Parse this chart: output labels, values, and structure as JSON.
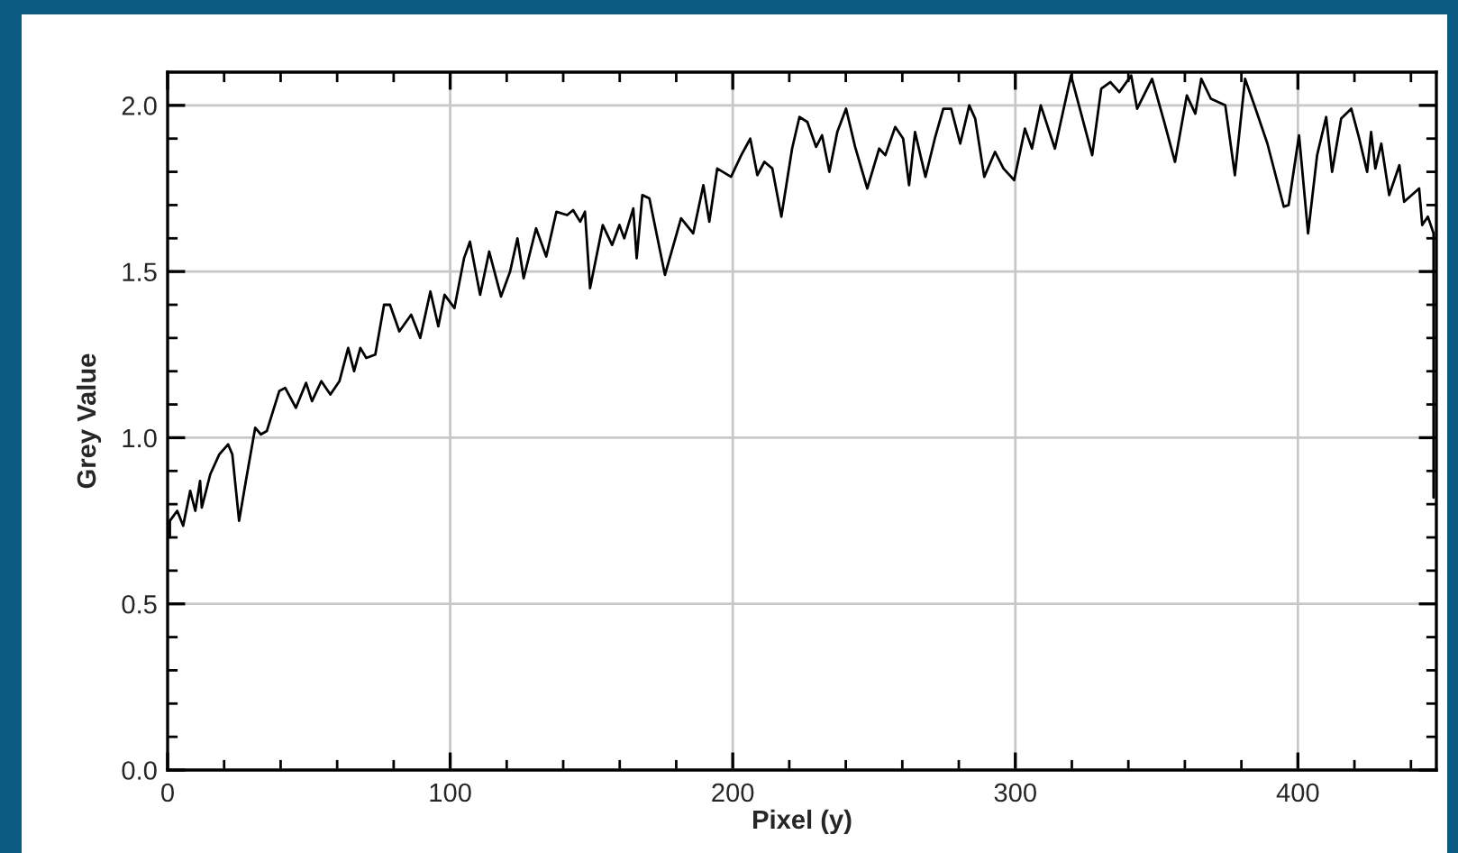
{
  "chart_data": {
    "type": "line",
    "xlabel": "Pixel (y)",
    "ylabel": "Grey Value",
    "xlim": [
      0,
      449
    ],
    "ylim": [
      0,
      2.1
    ],
    "xticks": [
      0,
      {
        "value": 20,
        "label": null
      },
      {
        "value": 40,
        "label": null
      },
      {
        "value": 60,
        "label": null
      },
      {
        "value": 80,
        "label": null
      },
      100,
      {
        "value": 120,
        "label": null
      },
      {
        "value": 140,
        "label": null
      },
      {
        "value": 160,
        "label": null
      },
      {
        "value": 180,
        "label": null
      },
      200,
      {
        "value": 220,
        "label": null
      },
      {
        "value": 240,
        "label": null
      },
      {
        "value": 260,
        "label": null
      },
      {
        "value": 280,
        "label": null
      },
      300,
      {
        "value": 320,
        "label": null
      },
      {
        "value": 340,
        "label": null
      },
      {
        "value": 360,
        "label": null
      },
      {
        "value": 380,
        "label": null
      },
      400,
      {
        "value": 420,
        "label": null
      },
      {
        "value": 440,
        "label": null
      }
    ],
    "yticks": [
      {
        "value": 0,
        "label": "0.0"
      },
      {
        "value": 0.1,
        "label": null
      },
      {
        "value": 0.2,
        "label": null
      },
      {
        "value": 0.3,
        "label": null
      },
      {
        "value": 0.4,
        "label": null
      },
      0.5,
      {
        "value": 0.6,
        "label": null
      },
      {
        "value": 0.7,
        "label": null
      },
      {
        "value": 0.8,
        "label": null
      },
      {
        "value": 0.9,
        "label": null
      },
      {
        "value": 1,
        "label": "1.0"
      },
      {
        "value": 1.1,
        "label": null
      },
      {
        "value": 1.2,
        "label": null
      },
      {
        "value": 1.3,
        "label": null
      },
      {
        "value": 1.4,
        "label": null
      },
      1.5,
      {
        "value": 1.6,
        "label": null
      },
      {
        "value": 1.7,
        "label": null
      },
      {
        "value": 1.8,
        "label": null
      },
      {
        "value": 1.9,
        "label": null
      },
      {
        "value": 2,
        "label": "2.0"
      }
    ],
    "grid": true,
    "legend": false,
    "marker": "none",
    "line_style": "solid",
    "series": [
      {
        "color": "#000000",
        "x": [
          0.8,
          0.8,
          3.4,
          5.5,
          8,
          9.8,
          11.5,
          12.1,
          15.1,
          18.3,
          21.4,
          22.9,
          25.3,
          27.8,
          31,
          33,
          35.1,
          39.5,
          41.6,
          45.4,
          49,
          51.1,
          54.4,
          57.6,
          60.8,
          63.9,
          66,
          68.2,
          70.3,
          73.5,
          76.6,
          78.7,
          82,
          86.2,
          89.4,
          93,
          95.8,
          98,
          101.5,
          104.9,
          107,
          110.6,
          113.8,
          118,
          121.2,
          123.8,
          126,
          130.4,
          134,
          137.6,
          141.4,
          143.5,
          146,
          147.7,
          149.5,
          154,
          157.3,
          159.9,
          161.6,
          164.8,
          166,
          168,
          170.5,
          176,
          181.7,
          186,
          189.6,
          191.7,
          194.5,
          199.4,
          203,
          206.2,
          208.7,
          211.2,
          214,
          217.2,
          221,
          223.6,
          226.4,
          229.5,
          231.6,
          234.2,
          237,
          240.1,
          243.3,
          247.6,
          251.8,
          254,
          257.5,
          260.3,
          262.4,
          264.5,
          268.2,
          271.5,
          274.5,
          277.3,
          280.5,
          283.7,
          285.8,
          289,
          292.8,
          295.8,
          299.6,
          303.4,
          305.9,
          309,
          314,
          319.7,
          327.2,
          330.4,
          333.6,
          336.8,
          341,
          343.1,
          348.4,
          352.7,
          356.5,
          360.7,
          363.7,
          365.8,
          369.2,
          374.3,
          377.7,
          381.3,
          385,
          389.2,
          395,
          396.7,
          400.4,
          403.6,
          406.8,
          410,
          412.1,
          415.3,
          418.9,
          421.7,
          424.5,
          425.9,
          427.4,
          429.5,
          432.3,
          435.9,
          437.6,
          442.9,
          444,
          446,
          448,
          448
        ],
        "values": [
          0.7,
          0.75,
          0.78,
          0.735,
          0.84,
          0.78,
          0.87,
          0.79,
          0.89,
          0.95,
          0.98,
          0.95,
          0.75,
          0.875,
          1.03,
          1.01,
          1.02,
          1.14,
          1.15,
          1.09,
          1.165,
          1.11,
          1.17,
          1.13,
          1.17,
          1.27,
          1.2,
          1.27,
          1.24,
          1.25,
          1.4,
          1.4,
          1.32,
          1.37,
          1.3,
          1.44,
          1.335,
          1.43,
          1.39,
          1.54,
          1.59,
          1.43,
          1.56,
          1.425,
          1.5,
          1.6,
          1.48,
          1.63,
          1.545,
          1.68,
          1.67,
          1.685,
          1.65,
          1.68,
          1.45,
          1.64,
          1.58,
          1.64,
          1.6,
          1.69,
          1.54,
          1.73,
          1.72,
          1.49,
          1.66,
          1.615,
          1.76,
          1.65,
          1.81,
          1.785,
          1.85,
          1.9,
          1.79,
          1.83,
          1.81,
          1.665,
          1.87,
          1.965,
          1.95,
          1.875,
          1.91,
          1.8,
          1.92,
          1.99,
          1.875,
          1.75,
          1.87,
          1.85,
          1.935,
          1.9,
          1.76,
          1.92,
          1.785,
          1.9,
          1.99,
          1.99,
          1.885,
          2.0,
          1.96,
          1.785,
          1.86,
          1.81,
          1.775,
          1.93,
          1.87,
          2.0,
          1.87,
          2.09,
          1.85,
          2.05,
          2.07,
          2.04,
          2.09,
          1.99,
          2.08,
          1.95,
          1.83,
          2.03,
          1.975,
          2.08,
          2.02,
          2.0,
          1.79,
          2.08,
          1.99,
          1.885,
          1.695,
          1.7,
          1.91,
          1.615,
          1.85,
          1.965,
          1.8,
          1.96,
          1.99,
          1.9,
          1.8,
          1.92,
          1.81,
          1.885,
          1.73,
          1.82,
          1.71,
          1.75,
          1.64,
          1.665,
          1.615,
          0.82
        ]
      }
    ]
  }
}
